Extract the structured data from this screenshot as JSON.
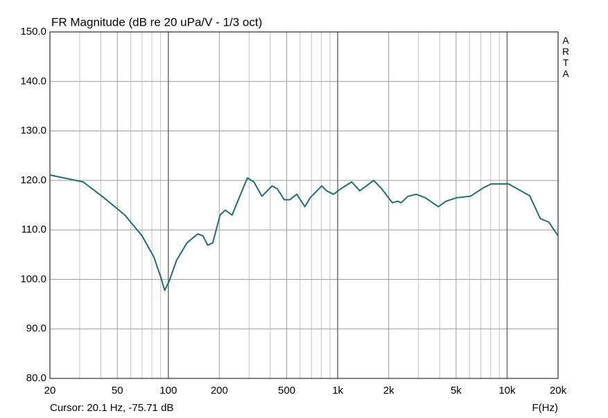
{
  "chart_data": {
    "type": "line",
    "title": "FR Magnitude (dB re 20 uPa/V - 1/3 oct)",
    "watermark": "ARTA",
    "cursor_text": "Cursor: 20.1 Hz, -75.71 dB",
    "xlabel": "F(Hz)",
    "xscale": "log",
    "grid": true,
    "color": "#1f6e6e",
    "xlim": [
      20,
      20000
    ],
    "ylim": [
      80,
      150
    ],
    "yticks": [
      {
        "value": 80,
        "label": "80.0"
      },
      {
        "value": 90,
        "label": "90.0"
      },
      {
        "value": 100,
        "label": "100.0"
      },
      {
        "value": 110,
        "label": "110.0"
      },
      {
        "value": 120,
        "label": "120.0"
      },
      {
        "value": 130,
        "label": "130.0"
      },
      {
        "value": 140,
        "label": "140.0"
      },
      {
        "value": 150,
        "label": "150.0"
      }
    ],
    "xticks": [
      20,
      50,
      100,
      200,
      500,
      {
        "value": 1000,
        "label": "1k"
      },
      {
        "value": 2000,
        "label": "2k"
      },
      {
        "value": 5000,
        "label": "5k"
      },
      {
        "value": 10000,
        "label": "10k"
      },
      {
        "value": 20000,
        "label": "20k"
      }
    ],
    "x_minor_ticks": [
      30,
      40,
      60,
      70,
      80,
      90,
      300,
      400,
      600,
      700,
      800,
      900,
      3000,
      4000,
      6000,
      7000,
      8000,
      9000
    ],
    "x": [
      20,
      31.4,
      41.7,
      55.4,
      70,
      82,
      90.4,
      95.2,
      101,
      112,
      129,
      149,
      160,
      171,
      183,
      202,
      217,
      238,
      262,
      293,
      320,
      357,
      410,
      440,
      484,
      521,
      573,
      640,
      688,
      805,
      860,
      945,
      1040,
      1210,
      1350,
      1630,
      1820,
      2100,
      2260,
      2370,
      2600,
      2910,
      3290,
      3930,
      4360,
      5030,
      6070,
      7320,
      8050,
      10200,
      11500,
      13600,
      15700,
      17600,
      20000
    ],
    "values": [
      121.1,
      119.7,
      116.5,
      113.0,
      108.8,
      104.6,
      100.4,
      97.8,
      99.6,
      103.9,
      107.4,
      109.2,
      108.8,
      106.9,
      107.4,
      113.0,
      114.0,
      113.0,
      116.5,
      120.5,
      119.7,
      116.8,
      118.9,
      118.3,
      116.1,
      116.1,
      117.2,
      114.7,
      116.5,
      118.9,
      117.9,
      117.2,
      118.3,
      119.7,
      117.9,
      120.0,
      118.3,
      115.5,
      115.8,
      115.5,
      116.8,
      117.2,
      116.5,
      114.7,
      115.8,
      116.5,
      116.8,
      118.6,
      119.3,
      119.3,
      118.3,
      116.9,
      112.3,
      111.6,
      108.8
    ]
  }
}
